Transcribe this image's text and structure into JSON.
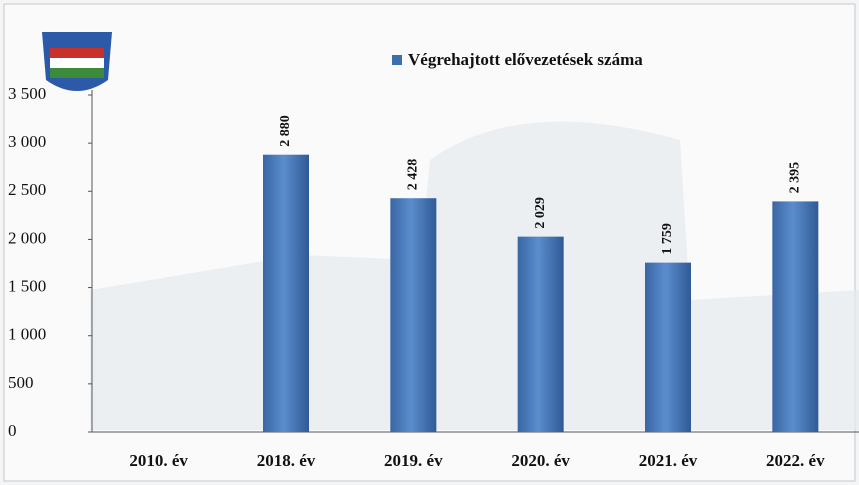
{
  "chart_data": {
    "type": "bar",
    "categories": [
      "2010. év",
      "2018. év",
      "2019. év",
      "2020. év",
      "2021. év",
      "2022. év"
    ],
    "series": [
      {
        "name": "Végrehajtott elővezetések száma",
        "color": "#3d6fae",
        "values": [
          null,
          2880,
          2428,
          2029,
          1759,
          2395
        ],
        "value_labels": [
          null,
          "2 880",
          "2 428",
          "2 029",
          "1 759",
          "2 395"
        ]
      }
    ],
    "ylim": [
      0,
      3500
    ],
    "yticks": [
      0,
      500,
      {
        "value": 1000,
        "label": "1 000"
      },
      {
        "value": 1500,
        "label": "1 500"
      },
      {
        "value": 2000,
        "label": "2 000"
      },
      {
        "value": 2500,
        "label": "2 500"
      },
      {
        "value": 3000,
        "label": "3 000"
      },
      {
        "value": 3500,
        "label": "3 500"
      }
    ],
    "grid": false
  }
}
